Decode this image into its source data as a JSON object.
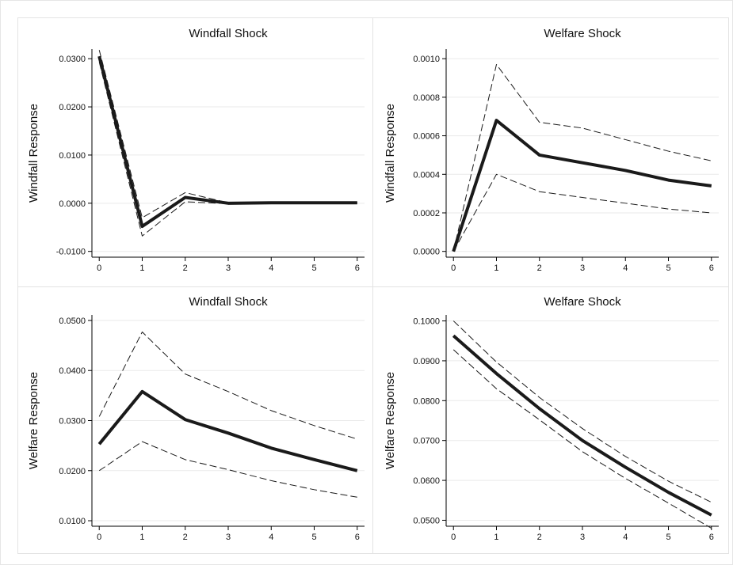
{
  "chart_data": [
    {
      "type": "line",
      "title": "Windfall Shock",
      "y_label": "Windfall Response",
      "x": [
        0,
        1,
        2,
        3,
        4,
        5,
        6
      ],
      "xlim": [
        -0.17,
        6.17
      ],
      "xticks": [
        0,
        1,
        2,
        3,
        4,
        5,
        6
      ],
      "ylim": [
        -0.0112,
        0.032
      ],
      "yticks": [
        {
          "value": -0.01,
          "label": "-0.0100"
        },
        {
          "value": 0,
          "label": "0.0000"
        },
        {
          "value": 0.01,
          "label": "0.0100"
        },
        {
          "value": 0.02,
          "label": "0.0200"
        },
        {
          "value": 0.03,
          "label": "0.0300"
        }
      ],
      "grid": true,
      "series": [
        {
          "color": "#1a1a1a",
          "line_style": "dashed",
          "values": [
            0.0318,
            -0.003,
            0.0022,
            0.0001,
            0.0002,
            0.0002,
            0.0002
          ]
        },
        {
          "color": "#1a1a1a",
          "line_style": "dashed",
          "values": [
            0.0293,
            -0.0068,
            0.0003,
            -0.0001,
            0.0,
            0.0,
            0.0
          ]
        },
        {
          "color": "#1a1a1a",
          "line_style": "solid",
          "values": [
            0.0305,
            -0.0048,
            0.0012,
            0.0,
            0.0001,
            0.0001,
            0.0001
          ]
        }
      ]
    },
    {
      "type": "line",
      "title": "Welfare Shock",
      "y_label": "Windfall Response",
      "x": [
        0,
        1,
        2,
        3,
        4,
        5,
        6
      ],
      "xlim": [
        -0.17,
        6.17
      ],
      "xticks": [
        0,
        1,
        2,
        3,
        4,
        5,
        6
      ],
      "ylim": [
        -3e-05,
        0.00105
      ],
      "yticks": [
        {
          "value": 0,
          "label": "0.0000"
        },
        {
          "value": 0.0002,
          "label": "0.0002"
        },
        {
          "value": 0.0004,
          "label": "0.0004"
        },
        {
          "value": 0.0006,
          "label": "0.0006"
        },
        {
          "value": 0.0008,
          "label": "0.0008"
        },
        {
          "value": 0.001,
          "label": "0.0010"
        }
      ],
      "grid": true,
      "series": [
        {
          "color": "#1a1a1a",
          "line_style": "dashed",
          "values": [
            0.0,
            0.00097,
            0.00067,
            0.00064,
            0.00058,
            0.00052,
            0.00047
          ]
        },
        {
          "color": "#1a1a1a",
          "line_style": "dashed",
          "values": [
            0.0,
            0.0004,
            0.00031,
            0.00028,
            0.00025,
            0.00022,
            0.0002
          ]
        },
        {
          "color": "#1a1a1a",
          "line_style": "solid",
          "values": [
            0.0,
            0.00068,
            0.0005,
            0.00046,
            0.00042,
            0.00037,
            0.00034
          ]
        }
      ]
    },
    {
      "type": "line",
      "title": "Windfall Shock",
      "y_label": "Welfare Response",
      "x": [
        0,
        1,
        2,
        3,
        4,
        5,
        6
      ],
      "xlim": [
        -0.17,
        6.17
      ],
      "xticks": [
        0,
        1,
        2,
        3,
        4,
        5,
        6
      ],
      "ylim": [
        0.0089,
        0.0511
      ],
      "yticks": [
        {
          "value": 0.01,
          "label": "0.0100"
        },
        {
          "value": 0.02,
          "label": "0.0200"
        },
        {
          "value": 0.03,
          "label": "0.0300"
        },
        {
          "value": 0.04,
          "label": "0.0400"
        },
        {
          "value": 0.05,
          "label": "0.0500"
        }
      ],
      "grid": true,
      "series": [
        {
          "color": "#1a1a1a",
          "line_style": "dashed",
          "values": [
            0.0308,
            0.0477,
            0.0393,
            0.0358,
            0.032,
            0.029,
            0.0263
          ]
        },
        {
          "color": "#1a1a1a",
          "line_style": "dashed",
          "values": [
            0.02,
            0.0258,
            0.0222,
            0.0202,
            0.018,
            0.0162,
            0.0147
          ]
        },
        {
          "color": "#1a1a1a",
          "line_style": "solid",
          "values": [
            0.0253,
            0.0358,
            0.0302,
            0.0275,
            0.0245,
            0.0222,
            0.02
          ]
        }
      ]
    },
    {
      "type": "line",
      "title": "Welfare Shock",
      "y_label": "Welfare Response",
      "x": [
        0,
        1,
        2,
        3,
        4,
        5,
        6
      ],
      "xlim": [
        -0.17,
        6.17
      ],
      "xticks": [
        0,
        1,
        2,
        3,
        4,
        5,
        6
      ],
      "ylim": [
        0.0485,
        0.1015
      ],
      "yticks": [
        {
          "value": 0.05,
          "label": "0.0500"
        },
        {
          "value": 0.06,
          "label": "0.0600"
        },
        {
          "value": 0.07,
          "label": "0.0700"
        },
        {
          "value": 0.08,
          "label": "0.0800"
        },
        {
          "value": 0.09,
          "label": "0.0900"
        },
        {
          "value": 0.1,
          "label": "0.1000"
        }
      ],
      "grid": true,
      "series": [
        {
          "color": "#1a1a1a",
          "line_style": "dashed",
          "values": [
            0.1,
            0.0897,
            0.0808,
            0.073,
            0.066,
            0.0598,
            0.0545
          ]
        },
        {
          "color": "#1a1a1a",
          "line_style": "dashed",
          "values": [
            0.0928,
            0.083,
            0.0752,
            0.0672,
            0.0605,
            0.0543,
            0.048
          ]
        },
        {
          "color": "#1a1a1a",
          "line_style": "solid",
          "values": [
            0.0963,
            0.0868,
            0.078,
            0.07,
            0.0633,
            0.057,
            0.0513
          ]
        }
      ]
    }
  ]
}
